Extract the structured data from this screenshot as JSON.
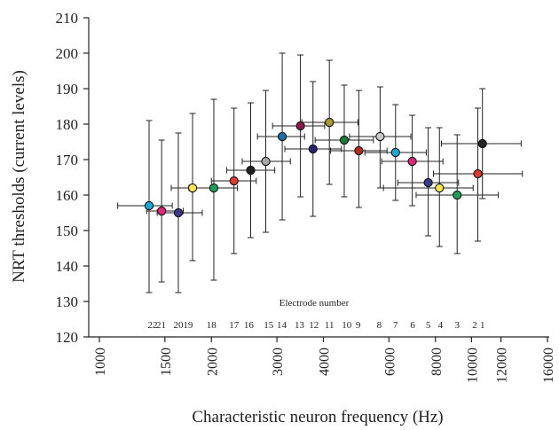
{
  "chart_data": {
    "type": "scatter",
    "xlabel": "Characteristic neuron frequency (Hz)",
    "ylabel": "NRT thresholds (current levels)",
    "x_scale": "log",
    "xlim": [
      1000,
      16000
    ],
    "ylim": [
      120,
      210
    ],
    "x_ticks": [
      1000,
      1500,
      2000,
      3000,
      4000,
      6000,
      8000,
      10000,
      12000,
      16000
    ],
    "y_ticks": [
      120,
      130,
      140,
      150,
      160,
      170,
      180,
      190,
      200,
      210
    ],
    "electrode_axis_title": "Electrode number",
    "electrode_labels": [
      {
        "text": "22",
        "x": 1390
      },
      {
        "text": "21",
        "x": 1465
      },
      {
        "text": "20",
        "x": 1630
      },
      {
        "text": "19",
        "x": 1730
      },
      {
        "text": "18",
        "x": 2000
      },
      {
        "text": "17",
        "x": 2300
      },
      {
        "text": "16",
        "x": 2520
      },
      {
        "text": "15",
        "x": 2850
      },
      {
        "text": "14",
        "x": 3090
      },
      {
        "text": "13",
        "x": 3450
      },
      {
        "text": "12",
        "x": 3770
      },
      {
        "text": "11",
        "x": 4150
      },
      {
        "text": "10",
        "x": 4620
      },
      {
        "text": "9",
        "x": 4960
      },
      {
        "text": "8",
        "x": 5650
      },
      {
        "text": "7",
        "x": 6250
      },
      {
        "text": "6",
        "x": 6950
      },
      {
        "text": "5",
        "x": 7650
      },
      {
        "text": "4",
        "x": 8250
      },
      {
        "text": "3",
        "x": 9150
      },
      {
        "text": "2",
        "x": 10200
      },
      {
        "text": "1",
        "x": 10700
      }
    ],
    "grid": false,
    "points": [
      {
        "electrode": 22,
        "x": 1360,
        "y": 157,
        "y_low": 132.5,
        "y_high": 181,
        "x_low": 1120,
        "x_high": 1570,
        "color": "#1aa7d9"
      },
      {
        "electrode": 21,
        "x": 1470,
        "y": 155.5,
        "y_low": 135.5,
        "y_high": 175.5,
        "x_low": 1340,
        "x_high": 1680,
        "color": "#e0237b"
      },
      {
        "electrode": 20,
        "x": 1630,
        "y": 155,
        "y_low": 132.5,
        "y_high": 177.5,
        "x_low": 1430,
        "x_high": 1890,
        "color": "#3a3a8c"
      },
      {
        "electrode": 19,
        "x": 1780,
        "y": 162,
        "y_low": 141.5,
        "y_high": 183,
        "x_low": 1560,
        "x_high": 2040,
        "color": "#f2e84a"
      },
      {
        "electrode": 18,
        "x": 2030,
        "y": 162,
        "y_low": 136,
        "y_high": 187,
        "x_low": 1740,
        "x_high": 2350,
        "color": "#1f9e57"
      },
      {
        "electrode": 17,
        "x": 2300,
        "y": 164,
        "y_low": 143.5,
        "y_high": 184.5,
        "x_low": 2000,
        "x_high": 2640,
        "color": "#e03a2c"
      },
      {
        "electrode": 16,
        "x": 2550,
        "y": 167,
        "y_low": 148,
        "y_high": 186,
        "x_low": 2200,
        "x_high": 2960,
        "color": "#222222"
      },
      {
        "electrode": 15,
        "x": 2800,
        "y": 169.5,
        "y_low": 149.5,
        "y_high": 189.5,
        "x_low": 2420,
        "x_high": 3260,
        "color": "#a8a8a8"
      },
      {
        "electrode": 14,
        "x": 3100,
        "y": 176.5,
        "y_low": 153,
        "y_high": 200,
        "x_low": 2660,
        "x_high": 3560,
        "color": "#1b6fa8"
      },
      {
        "electrode": 13,
        "x": 3470,
        "y": 179.5,
        "y_low": 159.5,
        "y_high": 199.5,
        "x_low": 2920,
        "x_high": 4030,
        "color": "#8b1a4a"
      },
      {
        "electrode": 12,
        "x": 3750,
        "y": 173,
        "y_low": 154,
        "y_high": 192,
        "x_low": 3150,
        "x_high": 4470,
        "color": "#23236e"
      },
      {
        "electrode": 11,
        "x": 4150,
        "y": 180.5,
        "y_low": 163,
        "y_high": 198,
        "x_low": 3500,
        "x_high": 4950,
        "color": "#a89a2c"
      },
      {
        "electrode": 10,
        "x": 4550,
        "y": 175.5,
        "y_low": 159.5,
        "y_high": 191,
        "x_low": 3800,
        "x_high": 5450,
        "color": "#1a7a3c"
      },
      {
        "electrode": 9,
        "x": 4980,
        "y": 172.5,
        "y_low": 156.5,
        "y_high": 189.5,
        "x_low": 4180,
        "x_high": 5930,
        "color": "#b02a1e"
      },
      {
        "electrode": 8,
        "x": 5680,
        "y": 176.5,
        "y_low": 162,
        "y_high": 190.5,
        "x_low": 4700,
        "x_high": 6870,
        "color": "#c9c9c9"
      },
      {
        "electrode": 7,
        "x": 6250,
        "y": 172,
        "y_low": 158.5,
        "y_high": 185.5,
        "x_low": 5170,
        "x_high": 7560,
        "color": "#1aa7d9"
      },
      {
        "electrode": 6,
        "x": 6930,
        "y": 169.5,
        "y_low": 157,
        "y_high": 182.5,
        "x_low": 5740,
        "x_high": 8380,
        "color": "#e0237b"
      },
      {
        "electrode": 5,
        "x": 7650,
        "y": 163.5,
        "y_low": 148.5,
        "y_high": 179,
        "x_low": 6340,
        "x_high": 9230,
        "color": "#3a3a8c"
      },
      {
        "electrode": 4,
        "x": 8200,
        "y": 162,
        "y_low": 145.5,
        "y_high": 179,
        "x_low": 5800,
        "x_high": 10100,
        "color": "#f2e84a"
      },
      {
        "electrode": 3,
        "x": 9150,
        "y": 160,
        "y_low": 143.5,
        "y_high": 177,
        "x_low": 7100,
        "x_high": 11800,
        "color": "#1f9e57"
      },
      {
        "electrode": 2,
        "x": 10400,
        "y": 166,
        "y_low": 147,
        "y_high": 184.5,
        "x_low": 7900,
        "x_high": 13700,
        "color": "#e03a2c"
      },
      {
        "electrode": 1,
        "x": 10700,
        "y": 174.5,
        "y_low": 159,
        "y_high": 190,
        "x_low": 8300,
        "x_high": 13600,
        "color": "#222222"
      }
    ]
  }
}
